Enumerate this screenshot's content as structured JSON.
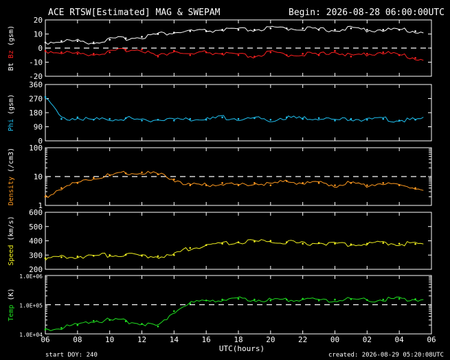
{
  "header": {
    "title": "ACE RTSW[Estimated] MAG & SWEPAM",
    "begin": "Begin: 2026-08-28 06:00:00UTC"
  },
  "footer": {
    "start_doy": "start DOY: 240",
    "created": "created: 2026-08-29 05:20:08UTC",
    "xlabel": "UTC(hours)"
  },
  "x_ticks": [
    "06",
    "08",
    "10",
    "12",
    "14",
    "16",
    "18",
    "20",
    "22",
    "00",
    "02",
    "04",
    "06"
  ],
  "colors": {
    "bt": "#ffffff",
    "bz": "#ff2020",
    "phi": "#20c0f0",
    "density": "#ff9a20",
    "speed": "#f0f020",
    "temp": "#20e020",
    "frame": "#ffffff",
    "background": "#000000"
  },
  "chart_data": [
    {
      "type": "line",
      "panel": "mag",
      "ylabel_parts": [
        {
          "text": "Bt",
          "color": "#ffffff"
        },
        {
          "text": "Bz",
          "color": "#ff2020"
        },
        {
          "text": "(gsm)",
          "color": "#ffffff"
        }
      ],
      "ylim": [
        -20,
        20
      ],
      "yticks": [
        "20",
        "10",
        "0",
        "-10",
        "-20"
      ],
      "dashed_ref": [
        0
      ],
      "x_hours": [
        0,
        1,
        2,
        3,
        4,
        5,
        6,
        7,
        8,
        9,
        10,
        11,
        12,
        13,
        14,
        15,
        16,
        17,
        18,
        19,
        20,
        21,
        22,
        23
      ],
      "series": [
        {
          "name": "Bt",
          "color": "#ffffff",
          "values": [
            4,
            5,
            5,
            4,
            6,
            7,
            8,
            10,
            11,
            12,
            12,
            13,
            13,
            13,
            14,
            14,
            14,
            13,
            13,
            14,
            13,
            13,
            13,
            12
          ]
        },
        {
          "name": "Bz",
          "color": "#ff2020",
          "values": [
            -2,
            -3,
            -4,
            -4,
            -3,
            -1,
            -1,
            -6,
            -2,
            -5,
            -3,
            -4,
            -5,
            -6,
            -3,
            -5,
            -4,
            -5,
            -2,
            -6,
            -4,
            -3,
            -5,
            -7
          ]
        }
      ]
    },
    {
      "type": "line",
      "panel": "phi",
      "ylabel_parts": [
        {
          "text": "Phi",
          "color": "#20c0f0"
        },
        {
          "text": "(gsm)",
          "color": "#ffffff"
        }
      ],
      "ylim": [
        0,
        360
      ],
      "yticks": [
        "360",
        "270",
        "180",
        "90",
        "0"
      ],
      "x_hours": [
        0,
        1,
        2,
        3,
        4,
        5,
        6,
        7,
        8,
        9,
        10,
        11,
        12,
        13,
        14,
        15,
        16,
        17,
        18,
        19,
        20,
        21,
        22,
        23
      ],
      "series": [
        {
          "name": "Phi",
          "color": "#20c0f0",
          "values": [
            280,
            140,
            150,
            135,
            140,
            145,
            130,
            135,
            130,
            140,
            135,
            150,
            140,
            145,
            135,
            150,
            140,
            145,
            130,
            140,
            135,
            140,
            130,
            135
          ]
        }
      ]
    },
    {
      "type": "line",
      "panel": "density",
      "ylabel_parts": [
        {
          "text": "Density",
          "color": "#ff9a20"
        },
        {
          "text": "(/cm3)",
          "color": "#ffffff"
        }
      ],
      "yscale": "log",
      "ylim": [
        1,
        100
      ],
      "yticks": [
        "100",
        "10",
        "1"
      ],
      "dashed_ref": [
        10
      ],
      "x_hours": [
        0,
        1,
        2,
        3,
        4,
        5,
        6,
        7,
        8,
        9,
        10,
        11,
        12,
        13,
        14,
        15,
        16,
        17,
        18,
        19,
        20,
        21,
        22,
        23
      ],
      "series": [
        {
          "name": "Density",
          "color": "#ff9a20",
          "values": [
            2,
            4,
            6,
            9,
            11,
            13,
            14,
            12,
            8,
            5,
            5,
            6,
            5,
            6,
            5,
            7,
            6,
            6,
            5,
            6,
            5,
            6,
            5,
            4
          ]
        }
      ]
    },
    {
      "type": "line",
      "panel": "speed",
      "ylabel_parts": [
        {
          "text": "Speed",
          "color": "#f0f020"
        },
        {
          "text": "(km/s)",
          "color": "#ffffff"
        }
      ],
      "ylim": [
        200,
        600
      ],
      "yticks": [
        "600",
        "500",
        "400",
        "300",
        "200"
      ],
      "x_hours": [
        0,
        1,
        2,
        3,
        4,
        5,
        6,
        7,
        8,
        9,
        10,
        11,
        12,
        13,
        14,
        15,
        16,
        17,
        18,
        19,
        20,
        21,
        22,
        23
      ],
      "series": [
        {
          "name": "Speed",
          "color": "#f0f020",
          "values": [
            278,
            285,
            290,
            295,
            300,
            302,
            295,
            292,
            300,
            350,
            370,
            380,
            390,
            395,
            400,
            390,
            380,
            385,
            380,
            375,
            380,
            385,
            380,
            378
          ]
        }
      ]
    },
    {
      "type": "line",
      "panel": "temp",
      "ylabel_parts": [
        {
          "text": "Temp",
          "color": "#20e020"
        },
        {
          "text": "(K)",
          "color": "#ffffff"
        }
      ],
      "yscale": "log",
      "ylim": [
        10000,
        1000000
      ],
      "yticks": [
        "1.0E+06",
        "1.0E+05",
        "1.0E+04"
      ],
      "dashed_ref": [
        100000
      ],
      "x_hours": [
        0,
        1,
        2,
        3,
        4,
        5,
        6,
        7,
        8,
        9,
        10,
        11,
        12,
        13,
        14,
        15,
        16,
        17,
        18,
        19,
        20,
        21,
        22,
        23
      ],
      "series": [
        {
          "name": "Temp",
          "color": "#20e020",
          "values": [
            14000,
            16000,
            20000,
            28000,
            30000,
            27000,
            22000,
            18000,
            60000,
            110000,
            140000,
            150000,
            160000,
            150000,
            140000,
            150000,
            160000,
            140000,
            150000,
            155000,
            145000,
            150000,
            160000,
            155000
          ]
        }
      ]
    }
  ]
}
